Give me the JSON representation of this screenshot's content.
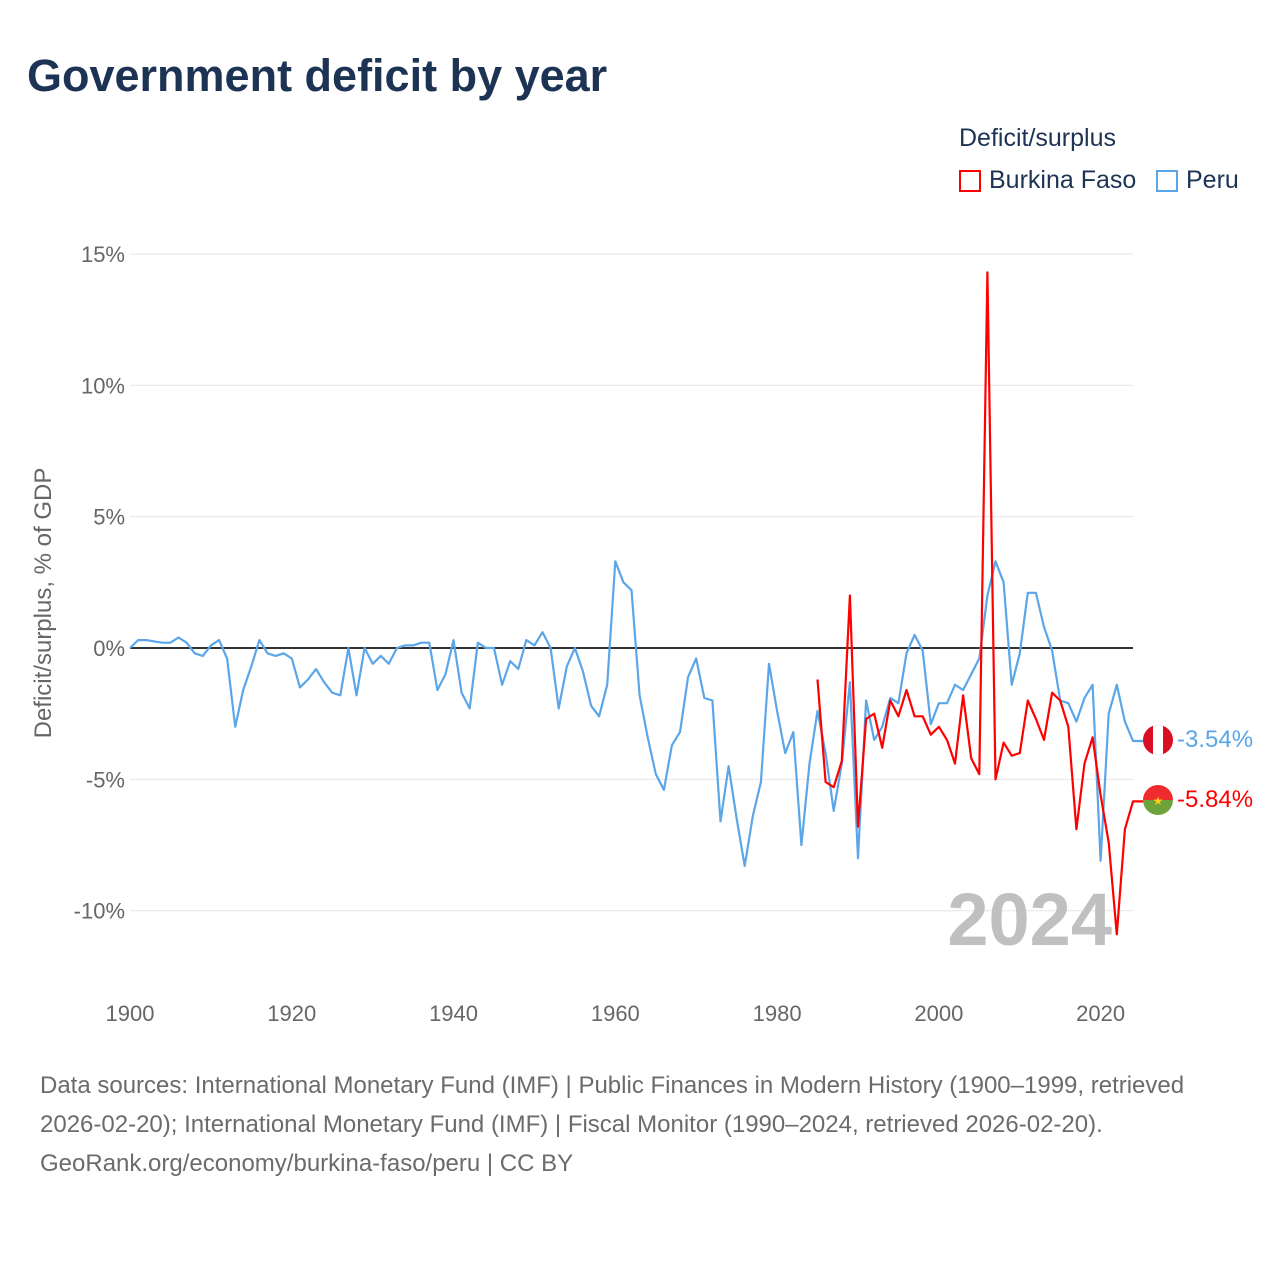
{
  "title": "Government deficit by year",
  "legend": {
    "title": "Deficit/surplus",
    "items": [
      {
        "name": "Burkina Faso",
        "color": "#ff0000"
      },
      {
        "name": "Peru",
        "color": "#5ba6e8"
      }
    ]
  },
  "year_watermark": "2024",
  "end_labels": {
    "peru": "-3.54%",
    "burkina_faso": "-5.84%"
  },
  "footer": {
    "sources": "Data sources: International Monetary Fund (IMF) | Public Finances in Modern History (1900–1999, retrieved 2026-02-20); International Monetary Fund (IMF) | Fiscal Monitor (1990–2024, retrieved 2026-02-20).",
    "link": "GeoRank.org/economy/burkina-faso/peru | CC BY"
  },
  "chart_data": {
    "type": "line",
    "title": "Government deficit by year",
    "xlabel": "",
    "ylabel": "Deficit/surplus, % of GDP",
    "xlim": [
      1900,
      2024
    ],
    "ylim": [
      -10,
      15
    ],
    "xticks": [
      1900,
      1920,
      1940,
      1960,
      1980,
      2000,
      2020
    ],
    "xtick_labels": [
      "1900",
      "1920",
      "1940",
      "1960",
      "1980",
      "2000",
      "2020"
    ],
    "yticks": [
      15,
      10,
      5,
      0,
      -5,
      -10
    ],
    "ytick_labels": [
      "15%",
      "10%",
      "5%",
      "0%",
      "-5%",
      "-10%"
    ],
    "grid": true,
    "legend_position": "top-right",
    "series": [
      {
        "name": "Peru",
        "color": "#5ba6e8",
        "start_year": 1900,
        "values": [
          0,
          0.3,
          0.3,
          0.25,
          0.2,
          0.2,
          0.4,
          0.2,
          -0.2,
          -0.3,
          0.1,
          0.3,
          -0.4,
          -3.0,
          -1.6,
          -0.7,
          0.3,
          -0.2,
          -0.3,
          -0.2,
          -0.4,
          -1.5,
          -1.2,
          -0.8,
          -1.3,
          -1.7,
          -1.8,
          0,
          -1.8,
          0,
          -0.6,
          -0.3,
          -0.6,
          0,
          0.1,
          0.1,
          0.2,
          0.2,
          -1.6,
          -1.0,
          0.3,
          -1.7,
          -2.3,
          0.2,
          0,
          0,
          -1.4,
          -0.5,
          -0.8,
          0.3,
          0.1,
          0.6,
          0,
          -2.3,
          -0.7,
          0,
          -0.9,
          -2.2,
          -2.6,
          -1.4,
          3.3,
          2.5,
          2.2,
          -1.8,
          -3.4,
          -4.8,
          -5.4,
          -3.7,
          -3.2,
          -1.1,
          -0.4,
          -1.9,
          -2.0,
          -6.6,
          -4.5,
          -6.5,
          -8.3,
          -6.4,
          -5.1,
          -0.6,
          -2.4,
          -4.0,
          -3.2,
          -7.5,
          -4.4,
          -2.4,
          -4.0,
          -6.2,
          -4.4,
          -1.3,
          -8.0,
          -2.0,
          -3.5,
          -3.0,
          -1.9,
          -2.1,
          -0.2,
          0.5,
          -0.1,
          -2.9,
          -2.1,
          -2.1,
          -1.4,
          -1.6,
          -1.0,
          -0.4,
          2.0,
          3.3,
          2.5,
          -1.4,
          -0.2,
          2.1,
          2.1,
          0.8,
          -0.1,
          -2.0,
          -2.1,
          -2.8,
          -1.9,
          -1.4,
          -8.1,
          -2.5,
          -1.4,
          -2.8,
          -3.54
        ]
      },
      {
        "name": "Burkina Faso",
        "color": "#ff0000",
        "start_year": 1985,
        "values": [
          -1.2,
          -5.1,
          -5.3,
          -4.3,
          2.0,
          -6.8,
          -2.7,
          -2.5,
          -3.8,
          -2.0,
          -2.6,
          -1.6,
          -2.6,
          -2.6,
          -3.3,
          -3.0,
          -3.5,
          -4.4,
          -1.8,
          -4.2,
          -4.8,
          14.3,
          -5.0,
          -3.6,
          -4.1,
          -4.0,
          -2.0,
          -2.7,
          -3.5,
          -1.7,
          -2.0,
          -3.0,
          -6.9,
          -4.4,
          -3.4,
          -5.6,
          -7.4,
          -10.9,
          -6.9,
          -5.84
        ]
      }
    ]
  }
}
